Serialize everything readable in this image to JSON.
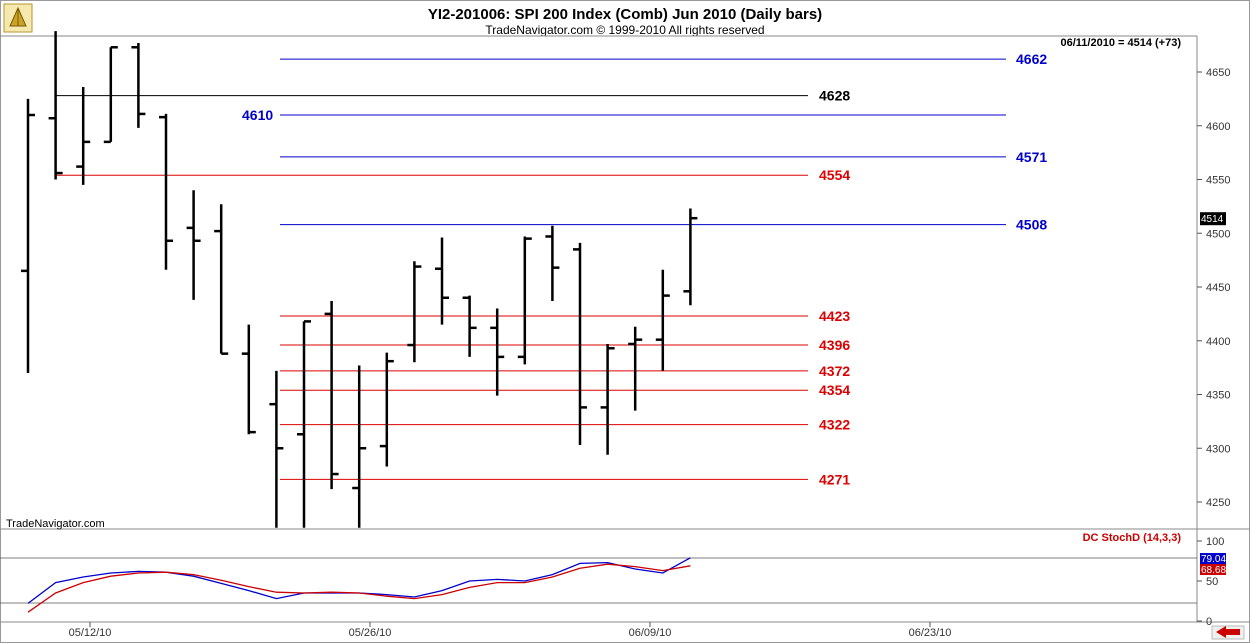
{
  "header": {
    "title": "YI2-201006:  SPI 200 Index (Comb) Jun 2010  (Daily bars)",
    "subtitle": "TradeNavigator.com © 1999-2010 All rights reserved",
    "last_info": "06/11/2010 = 4514 (+73)",
    "watermark": "TradeNavigator.com",
    "last_price_tag": "4514"
  },
  "indicator": {
    "name": "DC StochD (14,3,3)",
    "value_blue": "79.04",
    "value_red": "68.68",
    "ticks": [
      "100",
      "50",
      "0"
    ],
    "colors": {
      "k": "#0000cc",
      "d": "#cc0000"
    }
  },
  "colors": {
    "background": "#ffffff",
    "blue_level": "#0000cc",
    "red_level": "#dd0000",
    "black_level": "#000000",
    "bars": "#000000",
    "nav_arrow": "#cc0000"
  },
  "chart_data": [
    {
      "type": "ohlc",
      "title": "YI2-201006:  SPI 200 Index (Comb) Jun 2010  (Daily bars)",
      "y_ticks": [
        4650,
        4600,
        4550,
        4500,
        4450,
        4400,
        4350,
        4300,
        4250
      ],
      "x_ticks": [
        "05/12/10",
        "05/26/10",
        "06/09/10",
        "06/23/10"
      ],
      "ylim": [
        4226,
        4688
      ],
      "levels": [
        {
          "value": 4662,
          "label": "4662",
          "color": "blue"
        },
        {
          "value": 4628,
          "label": "4628",
          "color": "black"
        },
        {
          "value": 4610,
          "label": "4610",
          "color": "blue"
        },
        {
          "value": 4571,
          "label": "4571",
          "color": "blue"
        },
        {
          "value": 4554,
          "label": "4554",
          "color": "red"
        },
        {
          "value": 4508,
          "label": "4508",
          "color": "blue"
        },
        {
          "value": 4423,
          "label": "4423",
          "color": "red"
        },
        {
          "value": 4396,
          "label": "4396",
          "color": "red"
        },
        {
          "value": 4372,
          "label": "4372",
          "color": "red"
        },
        {
          "value": 4354,
          "label": "4354",
          "color": "red"
        },
        {
          "value": 4322,
          "label": "4322",
          "color": "red"
        },
        {
          "value": 4271,
          "label": "4271",
          "color": "red"
        }
      ],
      "bars": [
        {
          "open": 4465,
          "high": 4625,
          "low": 4370,
          "close": 4610
        },
        {
          "open": 4607,
          "high": 4688,
          "low": 4550,
          "close": 4556
        },
        {
          "open": 4562,
          "high": 4636,
          "low": 4545,
          "close": 4585
        },
        {
          "open": 4585,
          "high": 4673,
          "low": 4585,
          "close": 4673
        },
        {
          "open": 4673,
          "high": 4677,
          "low": 4598,
          "close": 4611
        },
        {
          "open": 4608,
          "high": 4611,
          "low": 4466,
          "close": 4493
        },
        {
          "open": 4505,
          "high": 4540,
          "low": 4438,
          "close": 4493
        },
        {
          "open": 4502,
          "high": 4527,
          "low": 4388,
          "close": 4388
        },
        {
          "open": 4388,
          "high": 4415,
          "low": 4313,
          "close": 4315
        },
        {
          "open": 4341,
          "high": 4372,
          "low": 4226,
          "close": 4300
        },
        {
          "open": 4313,
          "high": 4418,
          "low": 4226,
          "close": 4418
        },
        {
          "open": 4425,
          "high": 4437,
          "low": 4262,
          "close": 4276
        },
        {
          "open": 4263,
          "high": 4377,
          "low": 4226,
          "close": 4300
        },
        {
          "open": 4302,
          "high": 4389,
          "low": 4283,
          "close": 4381
        },
        {
          "open": 4396,
          "high": 4474,
          "low": 4380,
          "close": 4469
        },
        {
          "open": 4467,
          "high": 4496,
          "low": 4415,
          "close": 4440
        },
        {
          "open": 4440,
          "high": 4442,
          "low": 4385,
          "close": 4412
        },
        {
          "open": 4412,
          "high": 4430,
          "low": 4349,
          "close": 4385
        },
        {
          "open": 4385,
          "high": 4497,
          "low": 4378,
          "close": 4495
        },
        {
          "open": 4497,
          "high": 4507,
          "low": 4437,
          "close": 4468
        },
        {
          "open": 4485,
          "high": 4491,
          "low": 4303,
          "close": 4338
        },
        {
          "open": 4338,
          "high": 4397,
          "low": 4294,
          "close": 4393
        },
        {
          "open": 4397,
          "high": 4413,
          "low": 4335,
          "close": 4401
        },
        {
          "open": 4401,
          "high": 4466,
          "low": 4372,
          "close": 4442
        },
        {
          "open": 4446,
          "high": 4523,
          "low": 4433,
          "close": 4514
        }
      ]
    },
    {
      "type": "line",
      "title": "DC StochD (14,3,3)",
      "ylim": [
        0,
        100
      ],
      "y_ticks": [
        100,
        50,
        0
      ],
      "series": [
        {
          "color": "#0000cc",
          "values": [
            22,
            48,
            55,
            60,
            62,
            61,
            56,
            47,
            38,
            28,
            35,
            35,
            35,
            33,
            30,
            38,
            50,
            52,
            50,
            58,
            72,
            73,
            65,
            60,
            79
          ]
        },
        {
          "color": "#cc0000",
          "values": [
            11,
            35,
            48,
            56,
            60,
            61,
            58,
            51,
            43,
            36,
            35,
            36,
            35,
            31,
            28,
            33,
            42,
            48,
            48,
            55,
            66,
            71,
            68,
            63,
            69
          ]
        }
      ]
    }
  ]
}
